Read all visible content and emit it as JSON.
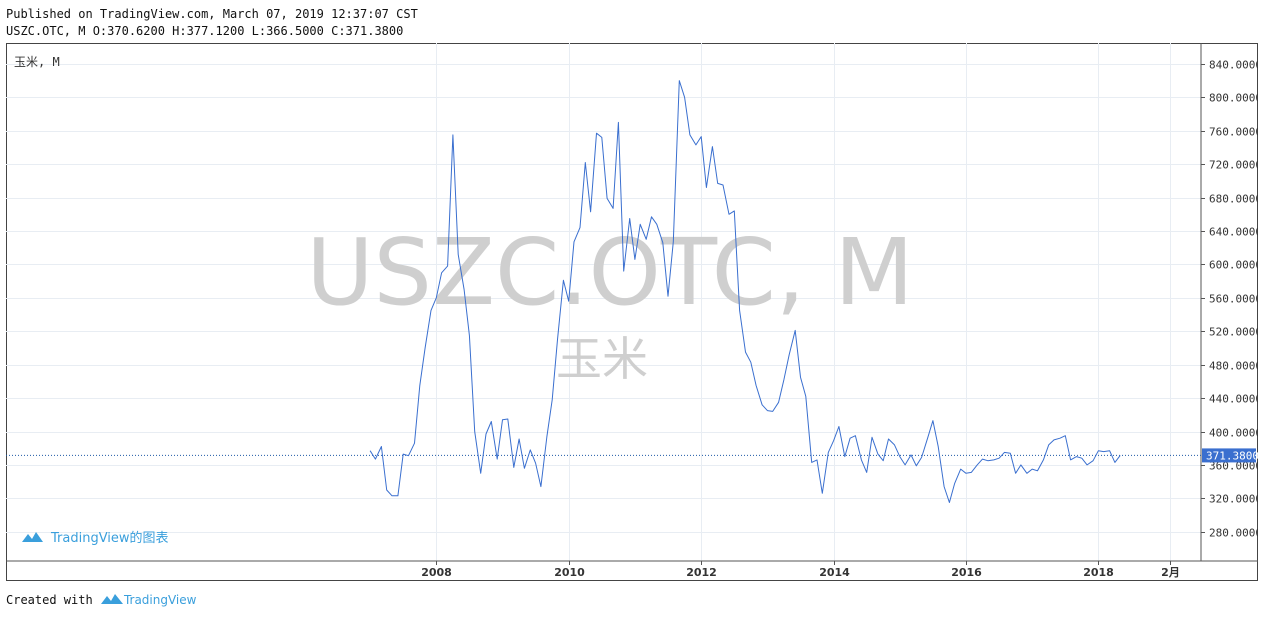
{
  "header": {
    "published_line": "Published on TradingView.com, March 07, 2019 12:37:07 CST",
    "ohlc_line": "USZC.OTC, M O:370.6200 H:377.1200 L:366.5000 C:371.3800"
  },
  "chart_data": {
    "type": "line",
    "symbol_label": "玉米, M",
    "watermark": {
      "main": "USZC.OTC, M",
      "sub": "玉米"
    },
    "logo_text": "TradingView的图表",
    "y_ticks": [
      840,
      800,
      760,
      720,
      680,
      640,
      600,
      560,
      520,
      480,
      440,
      400,
      360,
      320,
      280
    ],
    "y_tick_labels": [
      "840.0000",
      "800.0000",
      "760.0000",
      "720.0000",
      "680.0000",
      "640.0000",
      "600.0000",
      "560.0000",
      "520.0000",
      "480.0000",
      "440.0000",
      "400.0000",
      "360.0000",
      "320.0000",
      "280.0000"
    ],
    "ylim": [
      245,
      865
    ],
    "xlim": [
      2001.5,
      2019.55
    ],
    "x_ticks": [
      {
        "x": 2008.0,
        "label": "2008"
      },
      {
        "x": 2010.0,
        "label": "2010"
      },
      {
        "x": 2012.0,
        "label": "2012"
      },
      {
        "x": 2014.0,
        "label": "2014"
      },
      {
        "x": 2016.0,
        "label": "2016"
      },
      {
        "x": 2018.0,
        "label": "2018"
      },
      {
        "x": 2019.08,
        "label": "2月"
      }
    ],
    "last_value": 371.38,
    "last_value_label": "371.3800",
    "line_color": "#3a6fcf",
    "price_line_color": "#1f5aa6",
    "series": [
      {
        "values": [
          [
            2007.0,
            377
          ],
          [
            2007.08,
            367
          ],
          [
            2007.17,
            382
          ],
          [
            2007.25,
            330
          ],
          [
            2007.33,
            323
          ],
          [
            2007.42,
            323
          ],
          [
            2007.5,
            373
          ],
          [
            2007.58,
            371
          ],
          [
            2007.67,
            386
          ],
          [
            2007.75,
            455
          ],
          [
            2007.83,
            500
          ],
          [
            2007.92,
            545
          ],
          [
            2008.0,
            560
          ],
          [
            2008.08,
            590
          ],
          [
            2008.17,
            598
          ],
          [
            2008.25,
            755
          ],
          [
            2008.33,
            612
          ],
          [
            2008.42,
            570
          ],
          [
            2008.5,
            515
          ],
          [
            2008.58,
            400
          ],
          [
            2008.67,
            350
          ],
          [
            2008.75,
            397
          ],
          [
            2008.83,
            412
          ],
          [
            2008.92,
            367
          ],
          [
            2009.0,
            414
          ],
          [
            2009.08,
            415
          ],
          [
            2009.17,
            357
          ],
          [
            2009.25,
            391
          ],
          [
            2009.33,
            356
          ],
          [
            2009.42,
            378
          ],
          [
            2009.5,
            362
          ],
          [
            2009.58,
            334
          ],
          [
            2009.67,
            394
          ],
          [
            2009.75,
            438
          ],
          [
            2009.83,
            510
          ],
          [
            2009.92,
            581
          ],
          [
            2010.0,
            556
          ],
          [
            2010.08,
            627
          ],
          [
            2010.17,
            644
          ],
          [
            2010.25,
            722
          ],
          [
            2010.33,
            663
          ],
          [
            2010.42,
            757
          ],
          [
            2010.5,
            752
          ],
          [
            2010.58,
            679
          ],
          [
            2010.67,
            667
          ],
          [
            2010.75,
            770
          ],
          [
            2010.83,
            592
          ],
          [
            2010.92,
            655
          ],
          [
            2011.0,
            606
          ],
          [
            2011.08,
            648
          ],
          [
            2011.17,
            630
          ],
          [
            2011.25,
            657
          ],
          [
            2011.33,
            648
          ],
          [
            2011.42,
            626
          ],
          [
            2011.5,
            562
          ],
          [
            2011.58,
            627
          ],
          [
            2011.67,
            820
          ],
          [
            2011.75,
            800
          ],
          [
            2011.83,
            755
          ],
          [
            2011.92,
            743
          ],
          [
            2012.0,
            753
          ],
          [
            2012.08,
            692
          ],
          [
            2012.17,
            741
          ],
          [
            2012.25,
            697
          ],
          [
            2012.33,
            695
          ],
          [
            2012.42,
            660
          ],
          [
            2012.5,
            664
          ],
          [
            2012.58,
            545
          ],
          [
            2012.67,
            495
          ],
          [
            2012.75,
            483
          ],
          [
            2012.83,
            455
          ],
          [
            2012.92,
            432
          ],
          [
            2013.0,
            425
          ],
          [
            2013.08,
            424
          ],
          [
            2013.17,
            435
          ],
          [
            2013.25,
            462
          ],
          [
            2013.33,
            492
          ],
          [
            2013.42,
            521
          ],
          [
            2013.5,
            465
          ],
          [
            2013.58,
            442
          ],
          [
            2013.67,
            363
          ],
          [
            2013.75,
            366
          ],
          [
            2013.83,
            326
          ],
          [
            2013.92,
            375
          ],
          [
            2014.0,
            389
          ],
          [
            2014.08,
            406
          ],
          [
            2014.17,
            370
          ],
          [
            2014.25,
            392
          ],
          [
            2014.33,
            395
          ],
          [
            2014.42,
            366
          ],
          [
            2014.5,
            351
          ],
          [
            2014.58,
            393
          ],
          [
            2014.67,
            373
          ],
          [
            2014.75,
            365
          ],
          [
            2014.83,
            391
          ],
          [
            2014.92,
            384
          ],
          [
            2015.0,
            370
          ],
          [
            2015.08,
            360
          ],
          [
            2015.17,
            372
          ],
          [
            2015.25,
            359
          ],
          [
            2015.33,
            369
          ],
          [
            2015.42,
            392
          ],
          [
            2015.5,
            413
          ],
          [
            2015.58,
            382
          ],
          [
            2015.67,
            334
          ],
          [
            2015.75,
            315
          ],
          [
            2015.83,
            338
          ],
          [
            2015.92,
            355
          ],
          [
            2016.0,
            350
          ],
          [
            2016.08,
            351
          ],
          [
            2016.17,
            360
          ],
          [
            2016.25,
            367
          ],
          [
            2016.33,
            365
          ],
          [
            2016.42,
            366
          ],
          [
            2016.5,
            368
          ],
          [
            2016.58,
            375
          ],
          [
            2016.67,
            374
          ],
          [
            2016.75,
            350
          ],
          [
            2016.83,
            360
          ],
          [
            2016.92,
            350
          ],
          [
            2017.0,
            355
          ],
          [
            2017.08,
            353
          ],
          [
            2017.17,
            366
          ],
          [
            2017.25,
            384
          ],
          [
            2017.33,
            390
          ],
          [
            2017.42,
            392
          ],
          [
            2017.5,
            395
          ],
          [
            2017.58,
            366
          ],
          [
            2017.67,
            370
          ],
          [
            2017.75,
            368
          ],
          [
            2017.83,
            360
          ],
          [
            2017.92,
            365
          ],
          [
            2018.0,
            377
          ],
          [
            2018.08,
            376
          ],
          [
            2018.17,
            377
          ],
          [
            2018.25,
            363
          ],
          [
            2018.33,
            371.38
          ]
        ]
      }
    ]
  },
  "footer": {
    "created_with": "Created with",
    "brand": "TradingView"
  }
}
